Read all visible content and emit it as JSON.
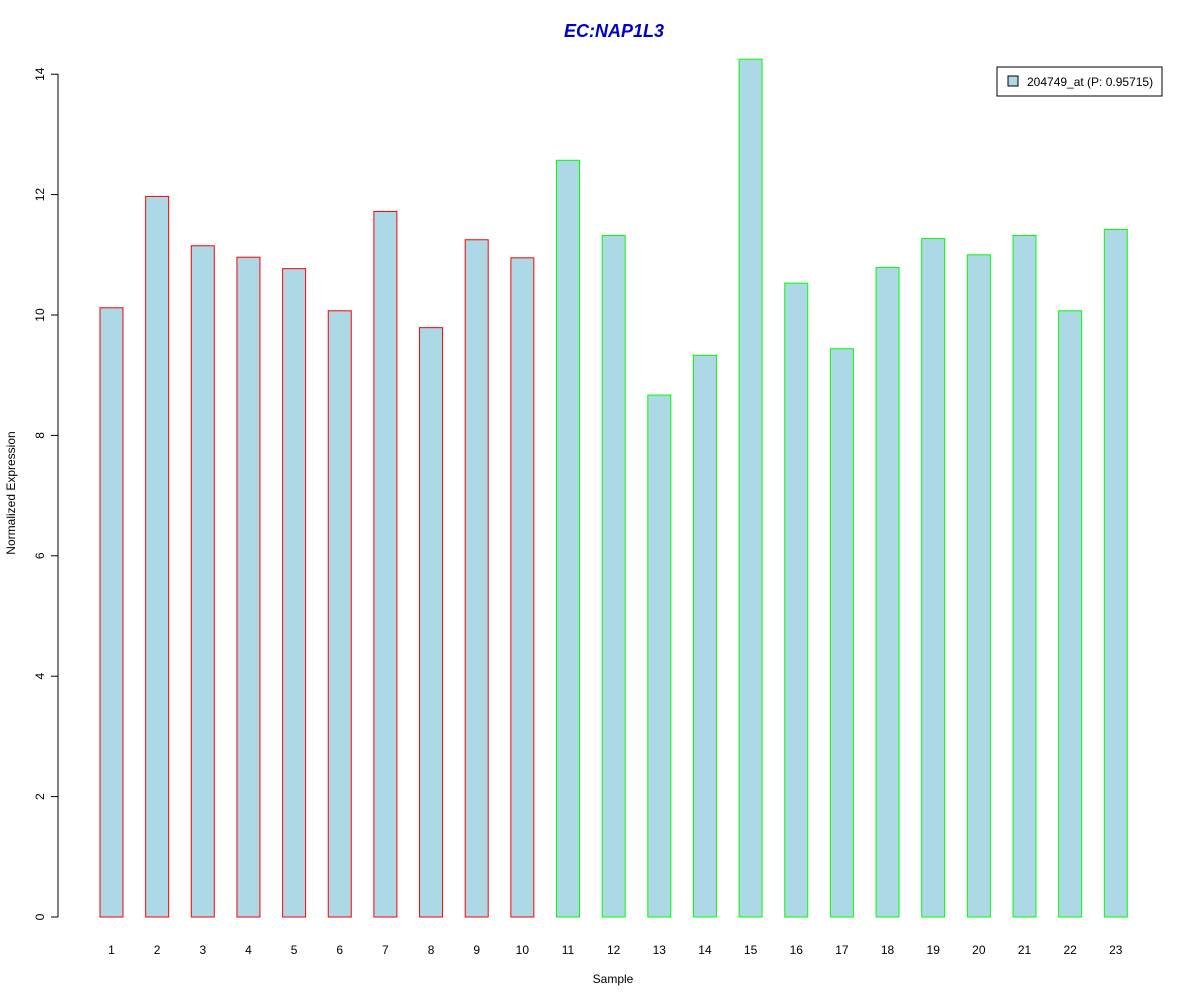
{
  "chart_data": {
    "type": "bar",
    "title": "EC:NAP1L3",
    "xlabel": "Sample",
    "ylabel": "Normalized Expression",
    "categories": [
      "1",
      "2",
      "3",
      "4",
      "5",
      "6",
      "7",
      "8",
      "9",
      "10",
      "11",
      "12",
      "13",
      "14",
      "15",
      "16",
      "17",
      "18",
      "19",
      "20",
      "21",
      "22",
      "23"
    ],
    "values": [
      10.12,
      11.97,
      11.15,
      10.96,
      10.77,
      10.07,
      11.72,
      9.79,
      11.25,
      10.95,
      12.57,
      11.32,
      8.67,
      9.33,
      14.25,
      10.53,
      9.44,
      10.79,
      11.27,
      11.0,
      11.32,
      10.07,
      11.42
    ],
    "groups": [
      "red",
      "red",
      "red",
      "red",
      "red",
      "red",
      "red",
      "red",
      "red",
      "red",
      "green",
      "green",
      "green",
      "green",
      "green",
      "green",
      "green",
      "green",
      "green",
      "green",
      "green",
      "green",
      "green"
    ],
    "yticks": [
      "0",
      "2",
      "4",
      "6",
      "8",
      "10",
      "12",
      "14"
    ],
    "ylim": [
      0,
      14.25
    ],
    "legend": {
      "label": "204749_at (P: 0.95715)",
      "position": "top-right"
    },
    "colors": {
      "bar_fill": "#add8e6",
      "group_red": "#ff0000",
      "group_green": "#00ff00",
      "title": "#0000cd"
    }
  }
}
